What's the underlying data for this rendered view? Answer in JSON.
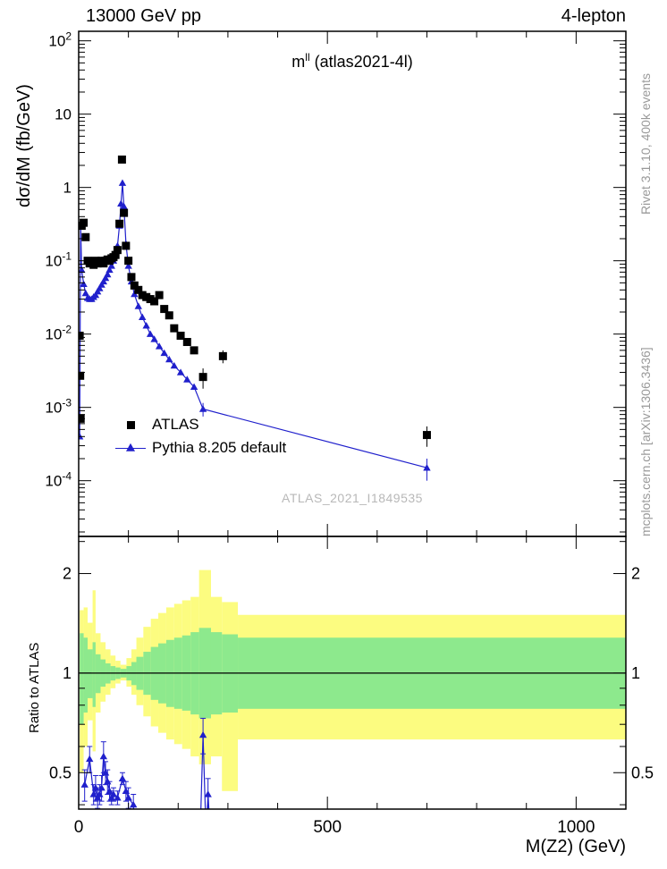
{
  "header": {
    "left": "13000 GeV pp",
    "right": "4-lepton"
  },
  "side_texts": {
    "top_right": "Rivet 3.1.10,  400k events",
    "bottom_right": "mcplots.cern.ch [arXiv:1306.3436]"
  },
  "watermark": "ATLAS_2021_I1849535",
  "chart_data": {
    "type": "line",
    "title": {
      "prefix": "m",
      "sup": "ll",
      "suffix": " (atlas2021-4l)"
    },
    "xlabel": "M(Z2) (GeV)",
    "ylabel": "dσ/dM (fb/GeV)",
    "ratio_ylabel": "Ratio to ATLAS",
    "x_range": [
      0,
      1100
    ],
    "x_major_ticks": [
      0,
      500,
      1000
    ],
    "x_minor_step": 100,
    "main_y_scale": "log",
    "main_y_range_exp": [
      -4.76,
      2.13
    ],
    "main_y_tick_exponents": [
      2,
      1,
      0,
      -1,
      -2,
      -3,
      -4
    ],
    "ratio_y_scale": "log",
    "ratio_y_range": [
      0.388,
      2.59
    ],
    "ratio_y_ticks": [
      0.5,
      1,
      2
    ],
    "ratio_y_minor_ticks": [
      0.4,
      0.6,
      0.7,
      0.8,
      0.9,
      2.5
    ],
    "colors": {
      "yellow": "#FCFC80",
      "green": "#8DE98D",
      "pythia_blue": "#2020CC",
      "atlas_black": "#000000"
    },
    "series": [
      {
        "name": "ATLAS",
        "marker": "square",
        "color": "#000000",
        "line": false,
        "points": [
          [
            2,
            0.0095
          ],
          [
            3,
            0.0027
          ],
          [
            4,
            0.0007
          ],
          [
            6,
            0.3
          ],
          [
            10,
            0.33
          ],
          [
            14,
            0.21
          ],
          [
            18,
            0.1
          ],
          [
            22,
            0.092
          ],
          [
            26,
            0.096
          ],
          [
            30,
            0.088
          ],
          [
            34,
            0.1
          ],
          [
            38,
            0.092
          ],
          [
            42,
            0.096
          ],
          [
            46,
            0.1
          ],
          [
            50,
            0.092
          ],
          [
            54,
            0.1
          ],
          [
            58,
            0.104
          ],
          [
            62,
            0.1
          ],
          [
            66,
            0.108
          ],
          [
            70,
            0.112
          ],
          [
            74,
            0.12
          ],
          [
            78,
            0.14
          ],
          [
            82,
            0.32
          ],
          [
            87,
            2.4
          ],
          [
            91,
            0.45
          ],
          [
            95,
            0.16
          ],
          [
            100,
            0.1
          ],
          [
            106,
            0.06
          ],
          [
            112,
            0.046
          ],
          [
            120,
            0.04
          ],
          [
            128,
            0.034
          ],
          [
            136,
            0.032
          ],
          [
            144,
            0.03
          ],
          [
            152,
            0.028
          ],
          [
            162,
            0.034
          ],
          [
            172,
            0.022
          ],
          [
            182,
            0.018
          ],
          [
            192,
            0.012
          ],
          [
            205,
            0.0095
          ],
          [
            218,
            0.0078
          ],
          [
            232,
            0.006
          ],
          [
            250,
            0.0026,
            0.0008
          ],
          [
            290,
            0.005,
            0.001
          ],
          [
            700,
            0.00042,
            0.00013
          ]
        ]
      },
      {
        "name": "Pythia 8.205 default",
        "marker": "triangle",
        "color": "#2020CC",
        "line": true,
        "points": [
          [
            2,
            0.0004
          ],
          [
            4,
            0.3
          ],
          [
            6,
            0.075
          ],
          [
            10,
            0.048
          ],
          [
            14,
            0.036
          ],
          [
            18,
            0.031
          ],
          [
            22,
            0.03
          ],
          [
            26,
            0.03
          ],
          [
            30,
            0.032
          ],
          [
            34,
            0.034
          ],
          [
            38,
            0.038
          ],
          [
            42,
            0.042
          ],
          [
            46,
            0.047
          ],
          [
            50,
            0.052
          ],
          [
            54,
            0.058
          ],
          [
            58,
            0.065
          ],
          [
            62,
            0.075
          ],
          [
            66,
            0.085
          ],
          [
            70,
            0.1
          ],
          [
            74,
            0.12
          ],
          [
            78,
            0.16
          ],
          [
            82,
            0.3
          ],
          [
            85,
            0.6
          ],
          [
            88,
            1.15
          ],
          [
            91,
            0.55
          ],
          [
            95,
            0.17
          ],
          [
            100,
            0.085
          ],
          [
            106,
            0.052
          ],
          [
            112,
            0.035
          ],
          [
            120,
            0.024
          ],
          [
            128,
            0.017
          ],
          [
            136,
            0.013
          ],
          [
            144,
            0.01
          ],
          [
            152,
            0.0085
          ],
          [
            162,
            0.0068
          ],
          [
            172,
            0.0055
          ],
          [
            182,
            0.0045
          ],
          [
            192,
            0.0037
          ],
          [
            205,
            0.003
          ],
          [
            218,
            0.0024
          ],
          [
            232,
            0.0019
          ],
          [
            250,
            0.00095,
            0.0002
          ],
          [
            700,
            0.00015,
            5e-05
          ]
        ]
      }
    ],
    "ratio": {
      "line_y": 1,
      "yellow_band": [
        [
          2,
          10,
          0.5,
          1.55
        ],
        [
          10,
          18,
          0.6,
          1.58
        ],
        [
          18,
          28,
          0.72,
          1.42
        ],
        [
          28,
          34,
          0.58,
          1.78
        ],
        [
          34,
          44,
          0.76,
          1.32
        ],
        [
          44,
          54,
          0.82,
          1.24
        ],
        [
          54,
          64,
          0.86,
          1.18
        ],
        [
          64,
          74,
          0.9,
          1.13
        ],
        [
          74,
          84,
          0.93,
          1.09
        ],
        [
          84,
          96,
          0.95,
          1.06
        ],
        [
          96,
          106,
          0.91,
          1.11
        ],
        [
          106,
          116,
          0.86,
          1.18
        ],
        [
          116,
          130,
          0.8,
          1.28
        ],
        [
          130,
          145,
          0.74,
          1.38
        ],
        [
          145,
          160,
          0.69,
          1.46
        ],
        [
          160,
          176,
          0.66,
          1.52
        ],
        [
          176,
          192,
          0.63,
          1.58
        ],
        [
          192,
          208,
          0.61,
          1.62
        ],
        [
          208,
          225,
          0.59,
          1.66
        ],
        [
          225,
          242,
          0.56,
          1.7
        ],
        [
          242,
          266,
          0.53,
          2.05
        ],
        [
          266,
          288,
          0.56,
          1.7
        ],
        [
          288,
          320,
          0.44,
          1.64
        ],
        [
          320,
          1100,
          0.63,
          1.5
        ]
      ],
      "green_band": [
        [
          2,
          10,
          0.7,
          1.32
        ],
        [
          10,
          18,
          0.76,
          1.28
        ],
        [
          18,
          28,
          0.84,
          1.18
        ],
        [
          28,
          34,
          0.79,
          1.24
        ],
        [
          34,
          44,
          0.87,
          1.14
        ],
        [
          44,
          54,
          0.91,
          1.1
        ],
        [
          54,
          64,
          0.93,
          1.07
        ],
        [
          64,
          74,
          0.95,
          1.05
        ],
        [
          74,
          84,
          0.96,
          1.04
        ],
        [
          84,
          96,
          0.97,
          1.03
        ],
        [
          96,
          106,
          0.95,
          1.05
        ],
        [
          106,
          116,
          0.92,
          1.08
        ],
        [
          116,
          130,
          0.89,
          1.12
        ],
        [
          130,
          145,
          0.86,
          1.16
        ],
        [
          145,
          160,
          0.83,
          1.2
        ],
        [
          160,
          176,
          0.81,
          1.23
        ],
        [
          176,
          192,
          0.79,
          1.26
        ],
        [
          192,
          208,
          0.78,
          1.28
        ],
        [
          208,
          225,
          0.77,
          1.3
        ],
        [
          225,
          242,
          0.75,
          1.33
        ],
        [
          242,
          266,
          0.73,
          1.37
        ],
        [
          266,
          288,
          0.75,
          1.33
        ],
        [
          288,
          320,
          0.76,
          1.31
        ],
        [
          320,
          1100,
          0.78,
          1.28
        ]
      ],
      "points": [
        [
          12,
          0.46,
          0.05
        ],
        [
          22,
          0.55,
          0.05
        ],
        [
          30,
          0.43,
          0.03
        ],
        [
          34,
          0.45,
          0.04
        ],
        [
          38,
          0.42,
          0.03
        ],
        [
          42,
          0.43,
          0.03
        ],
        [
          46,
          0.45,
          0.04
        ],
        [
          50,
          0.56,
          0.06
        ],
        [
          54,
          0.5,
          0.04
        ],
        [
          58,
          0.47,
          0.04
        ],
        [
          62,
          0.44,
          0.03
        ],
        [
          66,
          0.42,
          0.02
        ],
        [
          70,
          0.43,
          0.02
        ],
        [
          78,
          0.42,
          0.02
        ],
        [
          88,
          0.48,
          0.02
        ],
        [
          95,
          0.44,
          0.03
        ],
        [
          100,
          0.42,
          0.03
        ],
        [
          110,
          0.4,
          0.03
        ],
        [
          116,
          0.3,
          0
        ],
        [
          244,
          0.32,
          0
        ],
        [
          250,
          0.65,
          0.08
        ],
        [
          256,
          0.33,
          0
        ],
        [
          260,
          0.43,
          0.05
        ],
        [
          266,
          0.3,
          0
        ]
      ]
    }
  }
}
